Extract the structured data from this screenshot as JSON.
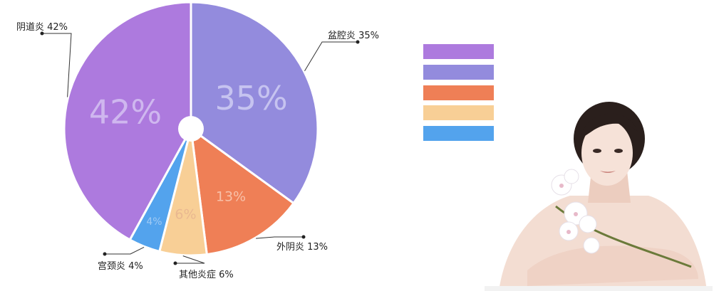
{
  "chart_data": {
    "type": "pie",
    "categories": [
      "阴道炎",
      "盆腔炎",
      "外阴炎",
      "其他炎症",
      "宫颈炎"
    ],
    "values": [
      42,
      35,
      13,
      6,
      4
    ],
    "value_labels": [
      "42%",
      "35%",
      "13%",
      "6%",
      "4%"
    ],
    "callouts": [
      "阴道炎 42%",
      "盆腔炎 35%",
      "外阴炎 13%",
      "其他炎症 6%",
      "宫颈炎 4%"
    ],
    "colors": [
      "#ad7ade",
      "#938bdd",
      "#ef7f56",
      "#f8cf96",
      "#53a3ed"
    ],
    "label_colors": [
      "#cfb7ef",
      "#c6c3f0",
      "#f8c1a9",
      "#e9b890",
      "#9fcaf4"
    ],
    "legend_placement": "right"
  },
  "legend": {
    "colors": [
      "#ad7ade",
      "#938bdd",
      "#ef7f56",
      "#f8cf96",
      "#53a3ed"
    ]
  },
  "photo": {
    "icon": "woman-with-orchid-image"
  }
}
